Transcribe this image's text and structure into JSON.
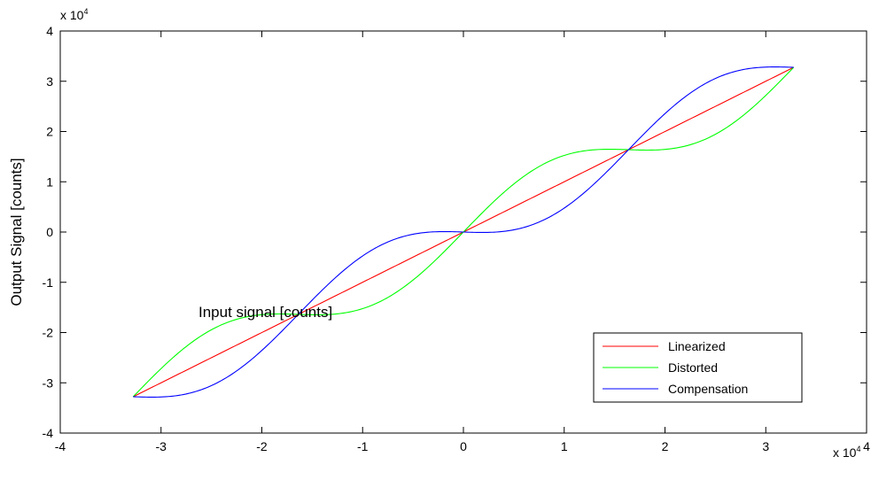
{
  "chart_data": {
    "type": "line",
    "title": "",
    "xlabel": "Input signal [counts]",
    "ylabel": "Output Signal [counts]",
    "x_scale_label": {
      "base": "x 10",
      "exponent": "4"
    },
    "y_scale_label": {
      "base": "x 10",
      "exponent": "4"
    },
    "xlim": [
      -4,
      4
    ],
    "ylim": [
      -4,
      4
    ],
    "x_ticks": [
      "-4",
      "-3",
      "-2",
      "-1",
      "0",
      "1",
      "2",
      "3",
      "4"
    ],
    "y_ticks": [
      "-4",
      "-3",
      "-2",
      "-1",
      "0",
      "1",
      "2",
      "3",
      "4"
    ],
    "grid": false,
    "legend_position": "bottom-right",
    "x_range_data": [
      -3.2768,
      3.2767
    ],
    "series": [
      {
        "name": "Linearized",
        "color": "#ff0000",
        "x": [
          -3.2768,
          -2.4576,
          -1.6384,
          -0.8192,
          0,
          0.8192,
          1.6384,
          2.4576,
          3.2767
        ],
        "y": [
          -3.2768,
          -2.4576,
          -1.6384,
          -0.8192,
          0,
          0.8192,
          1.6384,
          2.4576,
          3.2767
        ]
      },
      {
        "name": "Distorted",
        "color": "#00ff00",
        "x": [
          -3.2768,
          -2.4576,
          -1.6384,
          -0.8192,
          0,
          0.8192,
          1.6384,
          2.4576,
          3.2767
        ],
        "y": [
          -3.2768,
          -2.03,
          -1.6384,
          -1.33,
          0,
          1.33,
          1.6384,
          2.03,
          3.2767
        ]
      },
      {
        "name": "Compensation",
        "color": "#0000ff",
        "x": [
          -3.2768,
          -2.4576,
          -1.6384,
          -0.8192,
          0,
          0.8192,
          1.6384,
          2.4576,
          3.2767
        ],
        "y": [
          -3.2768,
          -2.86,
          -1.6384,
          -0.39,
          0,
          0.39,
          1.6384,
          2.86,
          3.2767
        ]
      }
    ]
  }
}
